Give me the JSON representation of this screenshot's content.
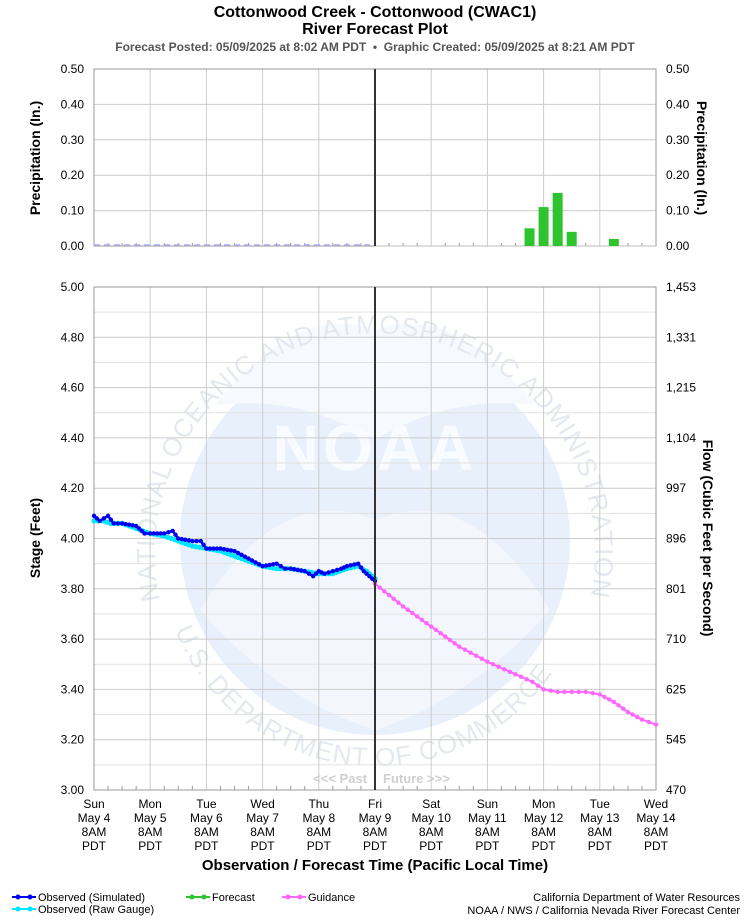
{
  "header": {
    "title1": "Cottonwood Creek - Cottonwood (CWAC1)",
    "title2": "River Forecast Plot",
    "posted": "Forecast Posted: 05/09/2025 at 8:02 AM PDT  •  Graphic Created: 05/09/2025 at 8:21 AM PDT"
  },
  "watermark": {
    "logo": "NOAA",
    "ring_top": "NATIONAL OCEANIC AND ATMOSPHERIC ADMINISTRATION",
    "ring_bottom": "U.S. DEPARTMENT OF COMMERCE"
  },
  "colors": {
    "observed_simulated": "#0000ee",
    "observed_raw": "#00e5ff",
    "forecast": "#2ec42e",
    "guidance": "#ff66ff",
    "grid": "#cccccc",
    "now_line": "#333333"
  },
  "chart_data": [
    {
      "id": "precip",
      "type": "bar",
      "ylabel": "Precipitation (In.)",
      "ylabel_right": "Precipitation (In.)",
      "ylim": [
        0,
        0.5
      ],
      "y_ticks": [
        "0.00",
        "0.10",
        "0.20",
        "0.30",
        "0.40",
        "0.50"
      ],
      "grid": true,
      "x_unit": "days since Sun May 4 8AM",
      "past_baseline": {
        "x": [
          0,
          5
        ],
        "y": 0,
        "style": "dashed",
        "color": "#aaaaff"
      },
      "bars": [
        {
          "x": 7.75,
          "value": 0.05
        },
        {
          "x": 8.0,
          "value": 0.11
        },
        {
          "x": 8.25,
          "value": 0.15
        },
        {
          "x": 8.5,
          "value": 0.04
        },
        {
          "x": 9.25,
          "value": 0.02
        }
      ]
    },
    {
      "id": "stage",
      "type": "line",
      "ylabel": "Stage (Feet)",
      "ylabel_right": "Flow (Cubic Feet per Second)",
      "ylim": [
        3.0,
        5.0
      ],
      "y_ticks": [
        "3.00",
        "3.20",
        "3.40",
        "3.60",
        "3.80",
        "4.00",
        "4.20",
        "4.40",
        "4.60",
        "4.80",
        "5.00"
      ],
      "y_right_ticks": [
        "470",
        "545",
        "625",
        "710",
        "801",
        "896",
        "997",
        "1,104",
        "1,215",
        "1,331",
        "1,453"
      ],
      "grid": true,
      "now_x": 5,
      "past_label": "<<< Past",
      "future_label": "Future >>>",
      "xlabel": "Observation / Forecast Time (Pacific Local Time)",
      "x_ticks": [
        {
          "x": 0,
          "lines": [
            "Sun",
            "May 4",
            "8AM",
            "PDT"
          ]
        },
        {
          "x": 1,
          "lines": [
            "Mon",
            "May 5",
            "8AM",
            "PDT"
          ]
        },
        {
          "x": 2,
          "lines": [
            "Tue",
            "May 6",
            "8AM",
            "PDT"
          ]
        },
        {
          "x": 3,
          "lines": [
            "Wed",
            "May 7",
            "8AM",
            "PDT"
          ]
        },
        {
          "x": 4,
          "lines": [
            "Thu",
            "May 8",
            "8AM",
            "PDT"
          ]
        },
        {
          "x": 5,
          "lines": [
            "Fri",
            "May 9",
            "8AM",
            "PDT"
          ]
        },
        {
          "x": 6,
          "lines": [
            "Sat",
            "May 10",
            "8AM",
            "PDT"
          ]
        },
        {
          "x": 7,
          "lines": [
            "Sun",
            "May 11",
            "8AM",
            "PDT"
          ]
        },
        {
          "x": 8,
          "lines": [
            "Mon",
            "May 12",
            "8AM",
            "PDT"
          ]
        },
        {
          "x": 9,
          "lines": [
            "Tue",
            "May 13",
            "8AM",
            "PDT"
          ]
        },
        {
          "x": 10,
          "lines": [
            "Wed",
            "May 14",
            "8AM",
            "PDT"
          ]
        }
      ],
      "series": [
        {
          "name": "Observed (Raw Gauge)",
          "key": "observed_raw",
          "x": [
            0,
            0.15,
            0.3,
            0.5,
            0.75,
            1.0,
            1.25,
            1.5,
            1.75,
            2.0,
            2.25,
            2.5,
            2.75,
            3.0,
            3.25,
            3.5,
            3.75,
            4.0,
            4.25,
            4.5,
            4.7,
            4.85,
            5.0
          ],
          "y": [
            4.07,
            4.07,
            4.06,
            4.06,
            4.04,
            4.02,
            4.01,
            3.99,
            3.97,
            3.96,
            3.95,
            3.93,
            3.91,
            3.89,
            3.88,
            3.88,
            3.87,
            3.86,
            3.86,
            3.88,
            3.89,
            3.87,
            3.84
          ]
        },
        {
          "name": "Observed (Simulated)",
          "key": "observed_simulated",
          "x": [
            0,
            0.1,
            0.25,
            0.35,
            0.5,
            0.75,
            0.9,
            1.0,
            1.25,
            1.4,
            1.5,
            1.75,
            1.9,
            2.0,
            2.25,
            2.5,
            2.75,
            3.0,
            3.25,
            3.4,
            3.5,
            3.75,
            3.9,
            4.0,
            4.1,
            4.25,
            4.4,
            4.5,
            4.7,
            4.8,
            4.9,
            5.0
          ],
          "y": [
            4.09,
            4.07,
            4.09,
            4.06,
            4.06,
            4.05,
            4.02,
            4.02,
            4.02,
            4.03,
            4.0,
            3.99,
            3.99,
            3.96,
            3.96,
            3.95,
            3.92,
            3.89,
            3.9,
            3.88,
            3.88,
            3.87,
            3.85,
            3.87,
            3.86,
            3.87,
            3.88,
            3.89,
            3.9,
            3.87,
            3.85,
            3.83
          ]
        },
        {
          "name": "Guidance",
          "key": "guidance",
          "x": [
            5.0,
            5.5,
            6.0,
            6.5,
            7.0,
            7.5,
            7.8,
            8.0,
            8.25,
            8.5,
            8.75,
            9.0,
            9.25,
            9.5,
            9.75,
            10.0
          ],
          "y": [
            3.82,
            3.73,
            3.65,
            3.57,
            3.51,
            3.46,
            3.43,
            3.4,
            3.39,
            3.39,
            3.39,
            3.38,
            3.35,
            3.31,
            3.28,
            3.26
          ]
        },
        {
          "name": "Forecast",
          "key": "forecast",
          "x": [],
          "y": []
        }
      ]
    }
  ],
  "legend": {
    "observed_simulated": "Observed (Simulated)",
    "observed_raw": "Observed (Raw Gauge)",
    "forecast": "Forecast",
    "guidance": "Guidance"
  },
  "credits": {
    "line1": "California Department of Water Resources",
    "line2": "NOAA / NWS / California Nevada River Forecast Center"
  }
}
